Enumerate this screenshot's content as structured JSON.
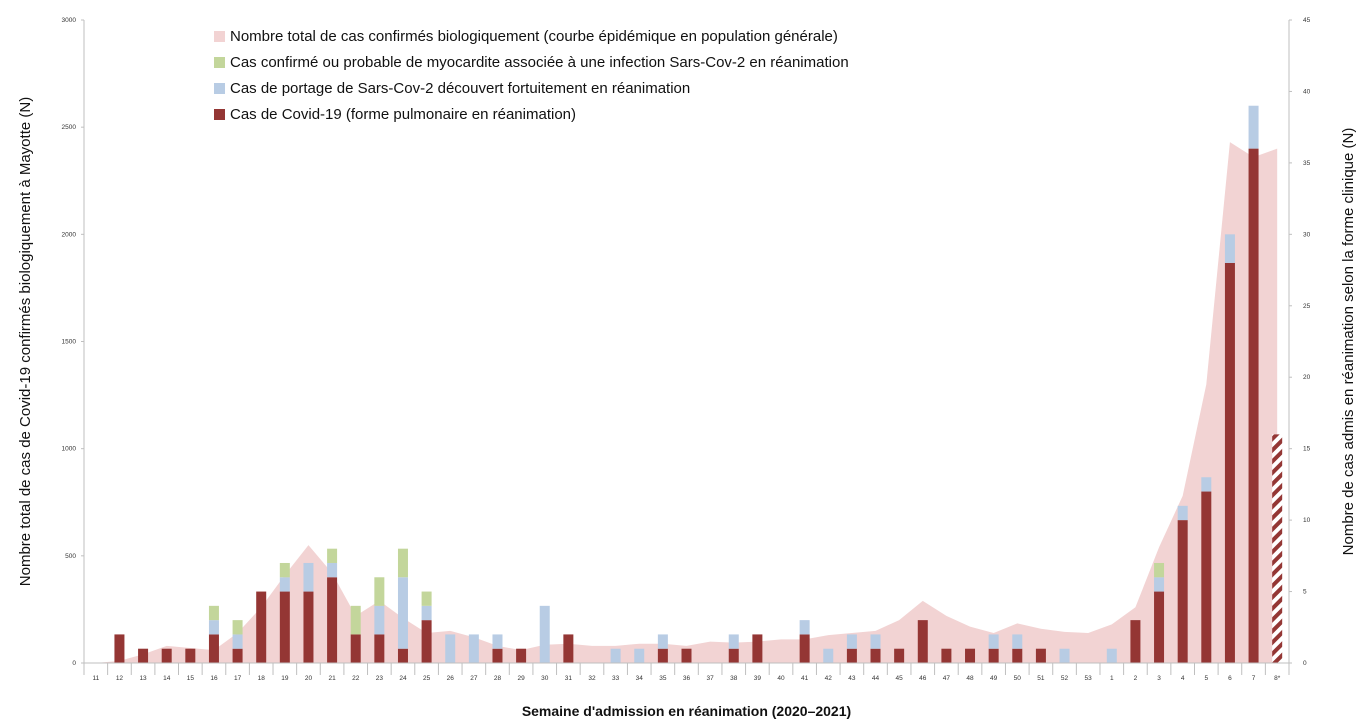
{
  "chart_data": {
    "type": "bar",
    "xlabel": "Semaine d'admission en réanimation (2020–2021)",
    "ylabel_left": "Nombre total de cas de Covid-19 confirmés biologiquement à Mayotte (N)",
    "ylabel_right": "Nombre de cas admis en réanimation selon la forme clinique (N)",
    "ylim_left": [
      0,
      3000
    ],
    "yticks_left": [
      "0",
      "500",
      "1000",
      "1500",
      "2000",
      "2500",
      "3000"
    ],
    "ylim_right": [
      0,
      45
    ],
    "yticks_right": [
      "0",
      "5",
      "10",
      "15",
      "20",
      "25",
      "30",
      "35",
      "40",
      "45"
    ],
    "legend_position": "top-left",
    "grid": false,
    "categories": [
      "11",
      "12",
      "13",
      "14",
      "15",
      "16",
      "17",
      "18",
      "19",
      "20",
      "21",
      "22",
      "23",
      "24",
      "25",
      "26",
      "27",
      "28",
      "29",
      "30",
      "31",
      "32",
      "33",
      "34",
      "35",
      "36",
      "37",
      "38",
      "39",
      "40",
      "41",
      "42",
      "43",
      "44",
      "45",
      "46",
      "47",
      "48",
      "49",
      "50",
      "51",
      "52",
      "53",
      "1",
      "2",
      "3",
      "4",
      "5",
      "6",
      "7",
      "8*"
    ],
    "series": [
      {
        "name": "Nombre total de cas confirmés biologiquement (courbe épidémique en population générale)",
        "type": "area",
        "axis": "left",
        "color": "#f2d3d3",
        "values": [
          0,
          10,
          40,
          80,
          70,
          60,
          140,
          260,
          410,
          550,
          420,
          220,
          290,
          210,
          140,
          150,
          120,
          80,
          60,
          85,
          90,
          80,
          80,
          90,
          90,
          80,
          100,
          95,
          100,
          110,
          110,
          130,
          140,
          150,
          200,
          290,
          220,
          170,
          140,
          185,
          160,
          145,
          140,
          180,
          260,
          540,
          780,
          1300,
          2430,
          2360,
          2400
        ]
      },
      {
        "name": "Cas de Covid-19 (forme pulmonaire en réanimation)",
        "type": "bar",
        "axis": "right",
        "color": "#943634",
        "values": [
          0,
          2,
          1,
          1,
          1,
          2,
          1,
          5,
          5,
          5,
          6,
          2,
          2,
          1,
          3,
          0,
          0,
          1,
          1,
          0,
          2,
          0,
          0,
          0,
          1,
          1,
          0,
          1,
          2,
          0,
          2,
          0,
          1,
          1,
          1,
          3,
          1,
          1,
          1,
          1,
          1,
          0,
          0,
          0,
          3,
          5,
          10,
          12,
          28,
          36,
          16
        ]
      },
      {
        "name": "Cas de portage de Sars-Cov-2 découvert fortuitement en réanimation",
        "type": "bar",
        "axis": "right",
        "color": "#b8cce4",
        "values": [
          0,
          0,
          0,
          0,
          0,
          1,
          1,
          0,
          1,
          2,
          1,
          0,
          2,
          5,
          1,
          2,
          2,
          1,
          0,
          4,
          0,
          0,
          1,
          1,
          1,
          0,
          0,
          1,
          0,
          0,
          1,
          1,
          1,
          1,
          0,
          0,
          0,
          0,
          1,
          1,
          0,
          1,
          0,
          1,
          0,
          1,
          1,
          1,
          2,
          3,
          0
        ]
      },
      {
        "name": "Cas confirmé ou probable de myocardite associée à une infection Sars-Cov-2 en réanimation",
        "type": "bar",
        "axis": "right",
        "color": "#c3d69b",
        "values": [
          0,
          0,
          0,
          0,
          0,
          1,
          1,
          0,
          1,
          0,
          1,
          2,
          2,
          2,
          1,
          0,
          0,
          0,
          0,
          0,
          0,
          0,
          0,
          0,
          0,
          0,
          0,
          0,
          0,
          0,
          0,
          0,
          0,
          0,
          0,
          0,
          0,
          0,
          0,
          0,
          0,
          0,
          0,
          0,
          0,
          1,
          0,
          0,
          0,
          0,
          0
        ]
      }
    ],
    "hatched_last_bar": "8*"
  }
}
